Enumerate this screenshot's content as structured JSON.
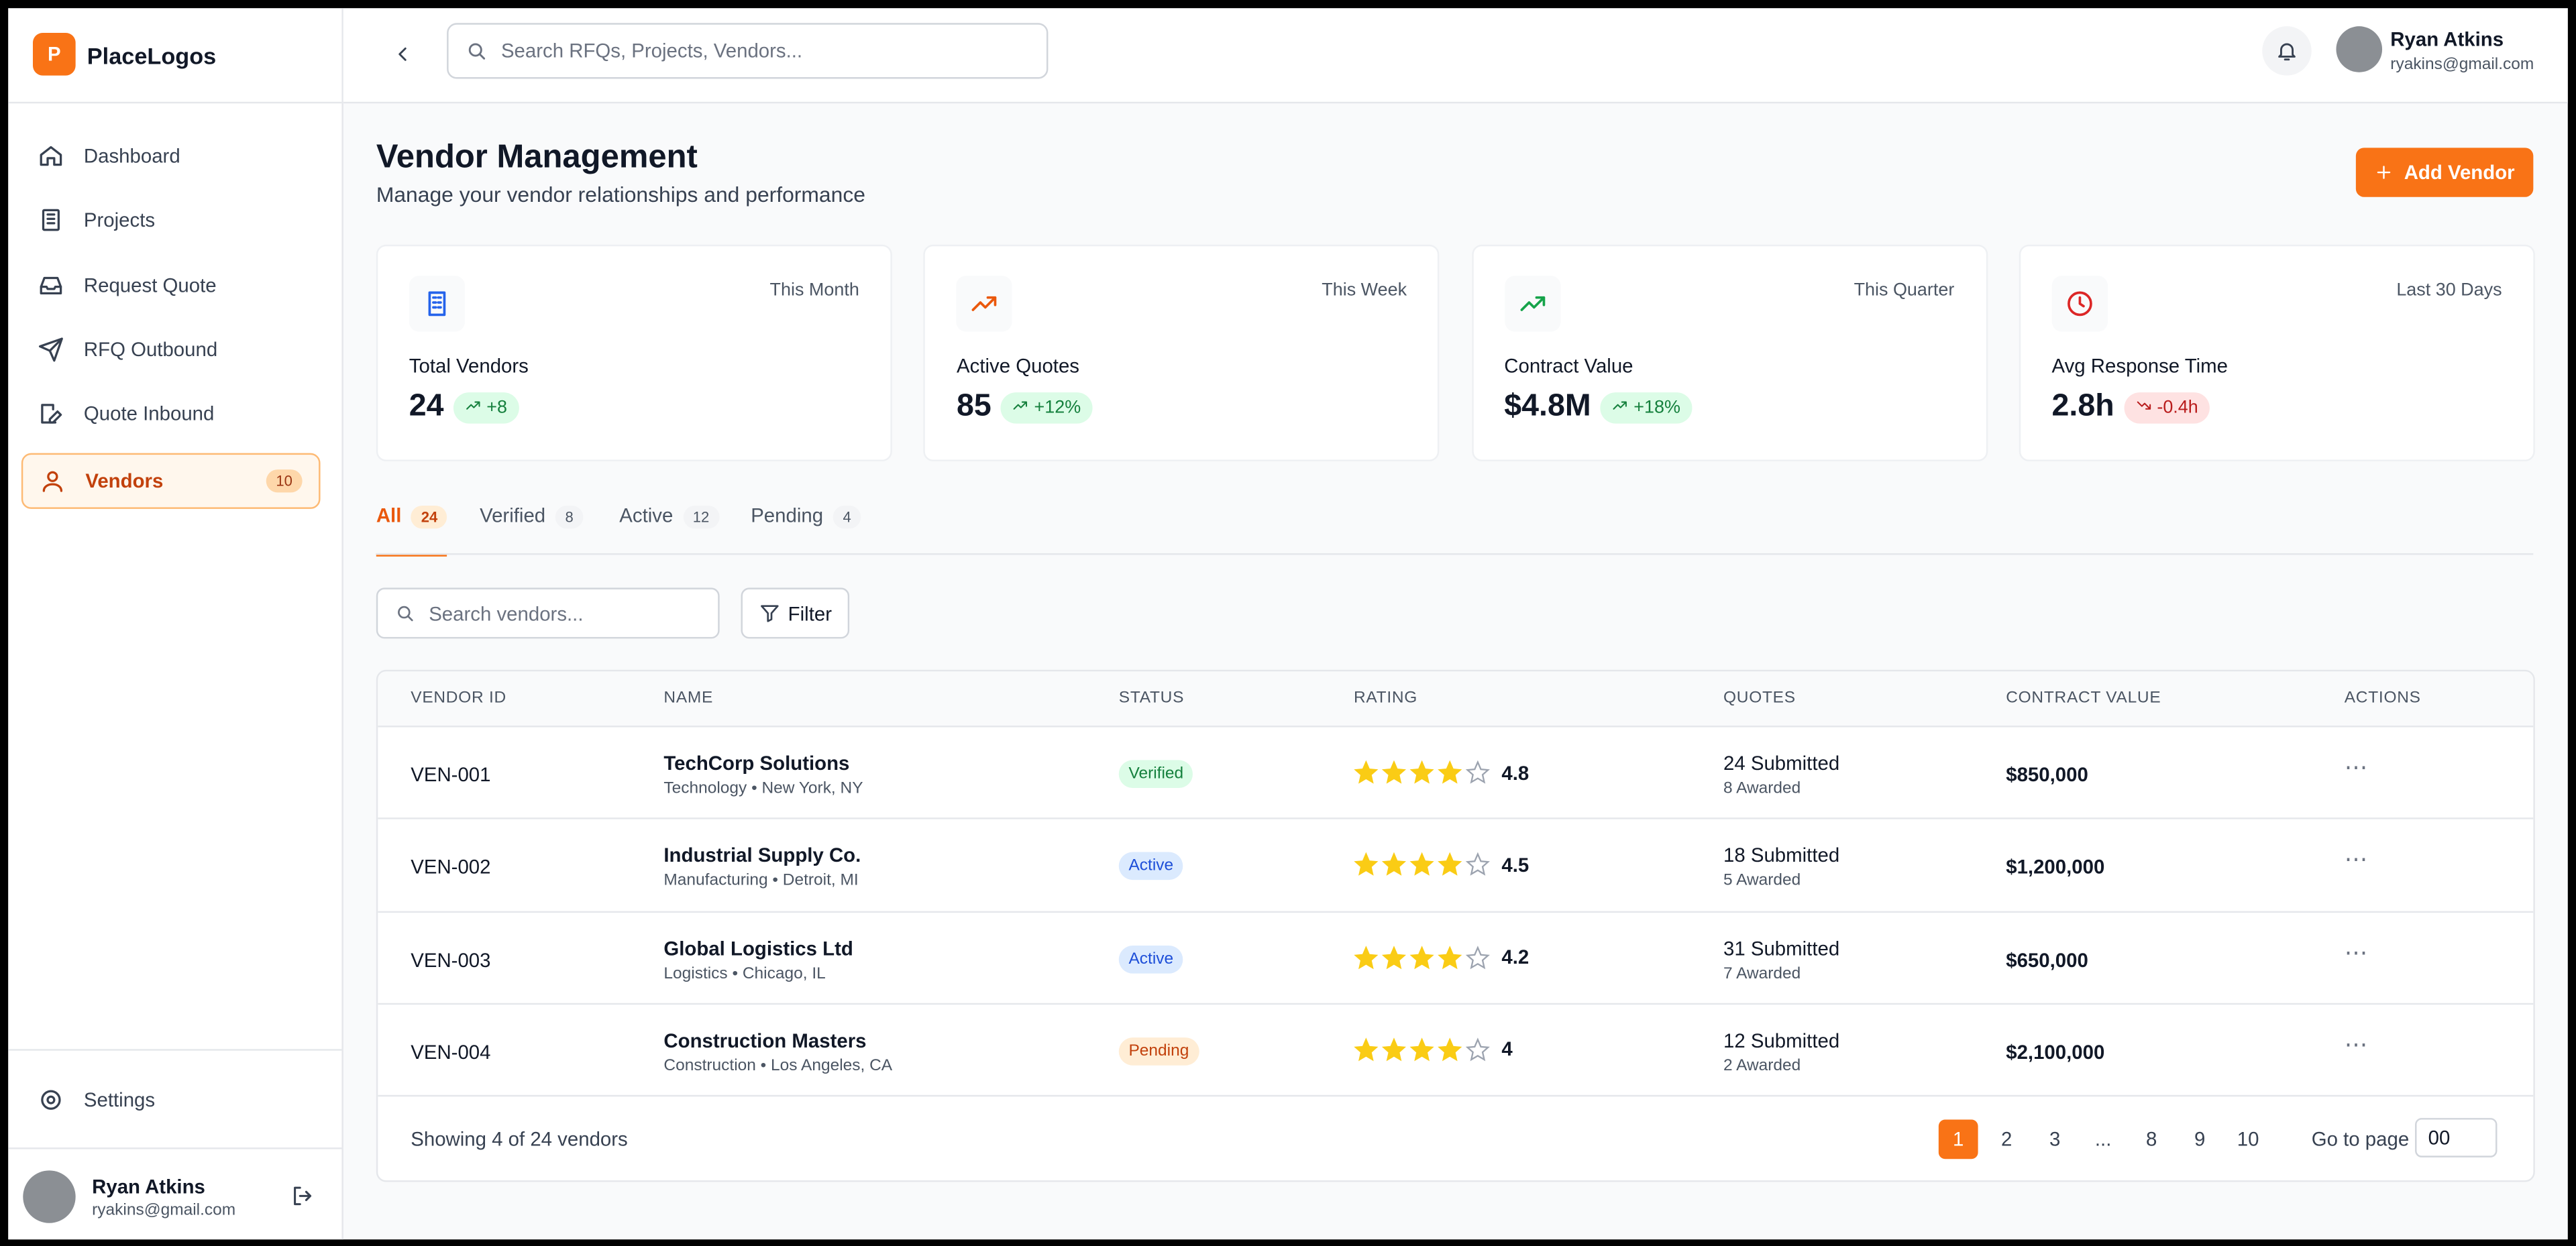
{
  "sidebar": {
    "logo_letter": "P",
    "brand": "PlaceLogos",
    "nav": [
      {
        "label": "Dashboard"
      },
      {
        "label": "Projects"
      },
      {
        "label": "Request Quote"
      },
      {
        "label": "RFQ Outbound"
      },
      {
        "label": "Quote Inbound"
      },
      {
        "label": "Vendors",
        "badge": "10",
        "active": true
      }
    ],
    "settings": "Settings",
    "user": {
      "name": "Ryan Atkins",
      "email": "ryakins@gmail.com"
    }
  },
  "header": {
    "search_placeholder": "Search RFQs, Projects, Vendors...",
    "user": {
      "name": "Ryan Atkins",
      "email": "ryakins@gmail.com"
    }
  },
  "page": {
    "title": "Vendor Management",
    "subtitle": "Manage your vendor relationships and performance",
    "add_button": "Add Vendor"
  },
  "stats": [
    {
      "period": "This Month",
      "label": "Total Vendors",
      "value": "24",
      "change": "+8",
      "trend": "up",
      "icon": "building",
      "color": "#2563eb"
    },
    {
      "period": "This Week",
      "label": "Active Quotes",
      "value": "85",
      "change": "+12%",
      "trend": "up",
      "icon": "trend",
      "color": "#ea580c"
    },
    {
      "period": "This Quarter",
      "label": "Contract Value",
      "value": "$4.8M",
      "change": "+18%",
      "trend": "up",
      "icon": "trend",
      "color": "#16a34a"
    },
    {
      "period": "Last 30 Days",
      "label": "Avg Response Time",
      "value": "2.8h",
      "change": "-0.4h",
      "trend": "down",
      "icon": "clock",
      "color": "#dc2626"
    }
  ],
  "tabs": [
    {
      "label": "All",
      "count": "24",
      "active": true
    },
    {
      "label": "Verified",
      "count": "8"
    },
    {
      "label": "Active",
      "count": "12"
    },
    {
      "label": "Pending",
      "count": "4"
    }
  ],
  "toolbar": {
    "search_placeholder": "Search vendors...",
    "filter": "Filter"
  },
  "table": {
    "columns": [
      "VENDOR ID",
      "NAME",
      "STATUS",
      "RATING",
      "QUOTES",
      "CONTRACT VALUE",
      "ACTIONS"
    ],
    "rows": [
      {
        "id": "VEN-001",
        "name": "TechCorp Solutions",
        "meta": "Technology • New York, NY",
        "status": "Verified",
        "rating": 4.8,
        "submitted": "24 Submitted",
        "awarded": "8 Awarded",
        "contract_value": "$850,000"
      },
      {
        "id": "VEN-002",
        "name": "Industrial Supply Co.",
        "meta": "Manufacturing • Detroit, MI",
        "status": "Active",
        "rating": 4.5,
        "submitted": "18 Submitted",
        "awarded": "5 Awarded",
        "contract_value": "$1,200,000"
      },
      {
        "id": "VEN-003",
        "name": "Global Logistics Ltd",
        "meta": "Logistics • Chicago, IL",
        "status": "Active",
        "rating": 4.2,
        "submitted": "31 Submitted",
        "awarded": "7 Awarded",
        "contract_value": "$650,000"
      },
      {
        "id": "VEN-004",
        "name": "Construction Masters",
        "meta": "Construction • Los Angeles, CA",
        "status": "Pending",
        "rating": 4,
        "submitted": "12 Submitted",
        "awarded": "2 Awarded",
        "contract_value": "$2,100,000"
      }
    ]
  },
  "pagination": {
    "summary": "Showing 4 of 24 vendors",
    "pages": [
      "1",
      "2",
      "3",
      "...",
      "8",
      "9",
      "10"
    ],
    "current": "1",
    "goto_label": "Go to page",
    "goto_value": "00"
  }
}
